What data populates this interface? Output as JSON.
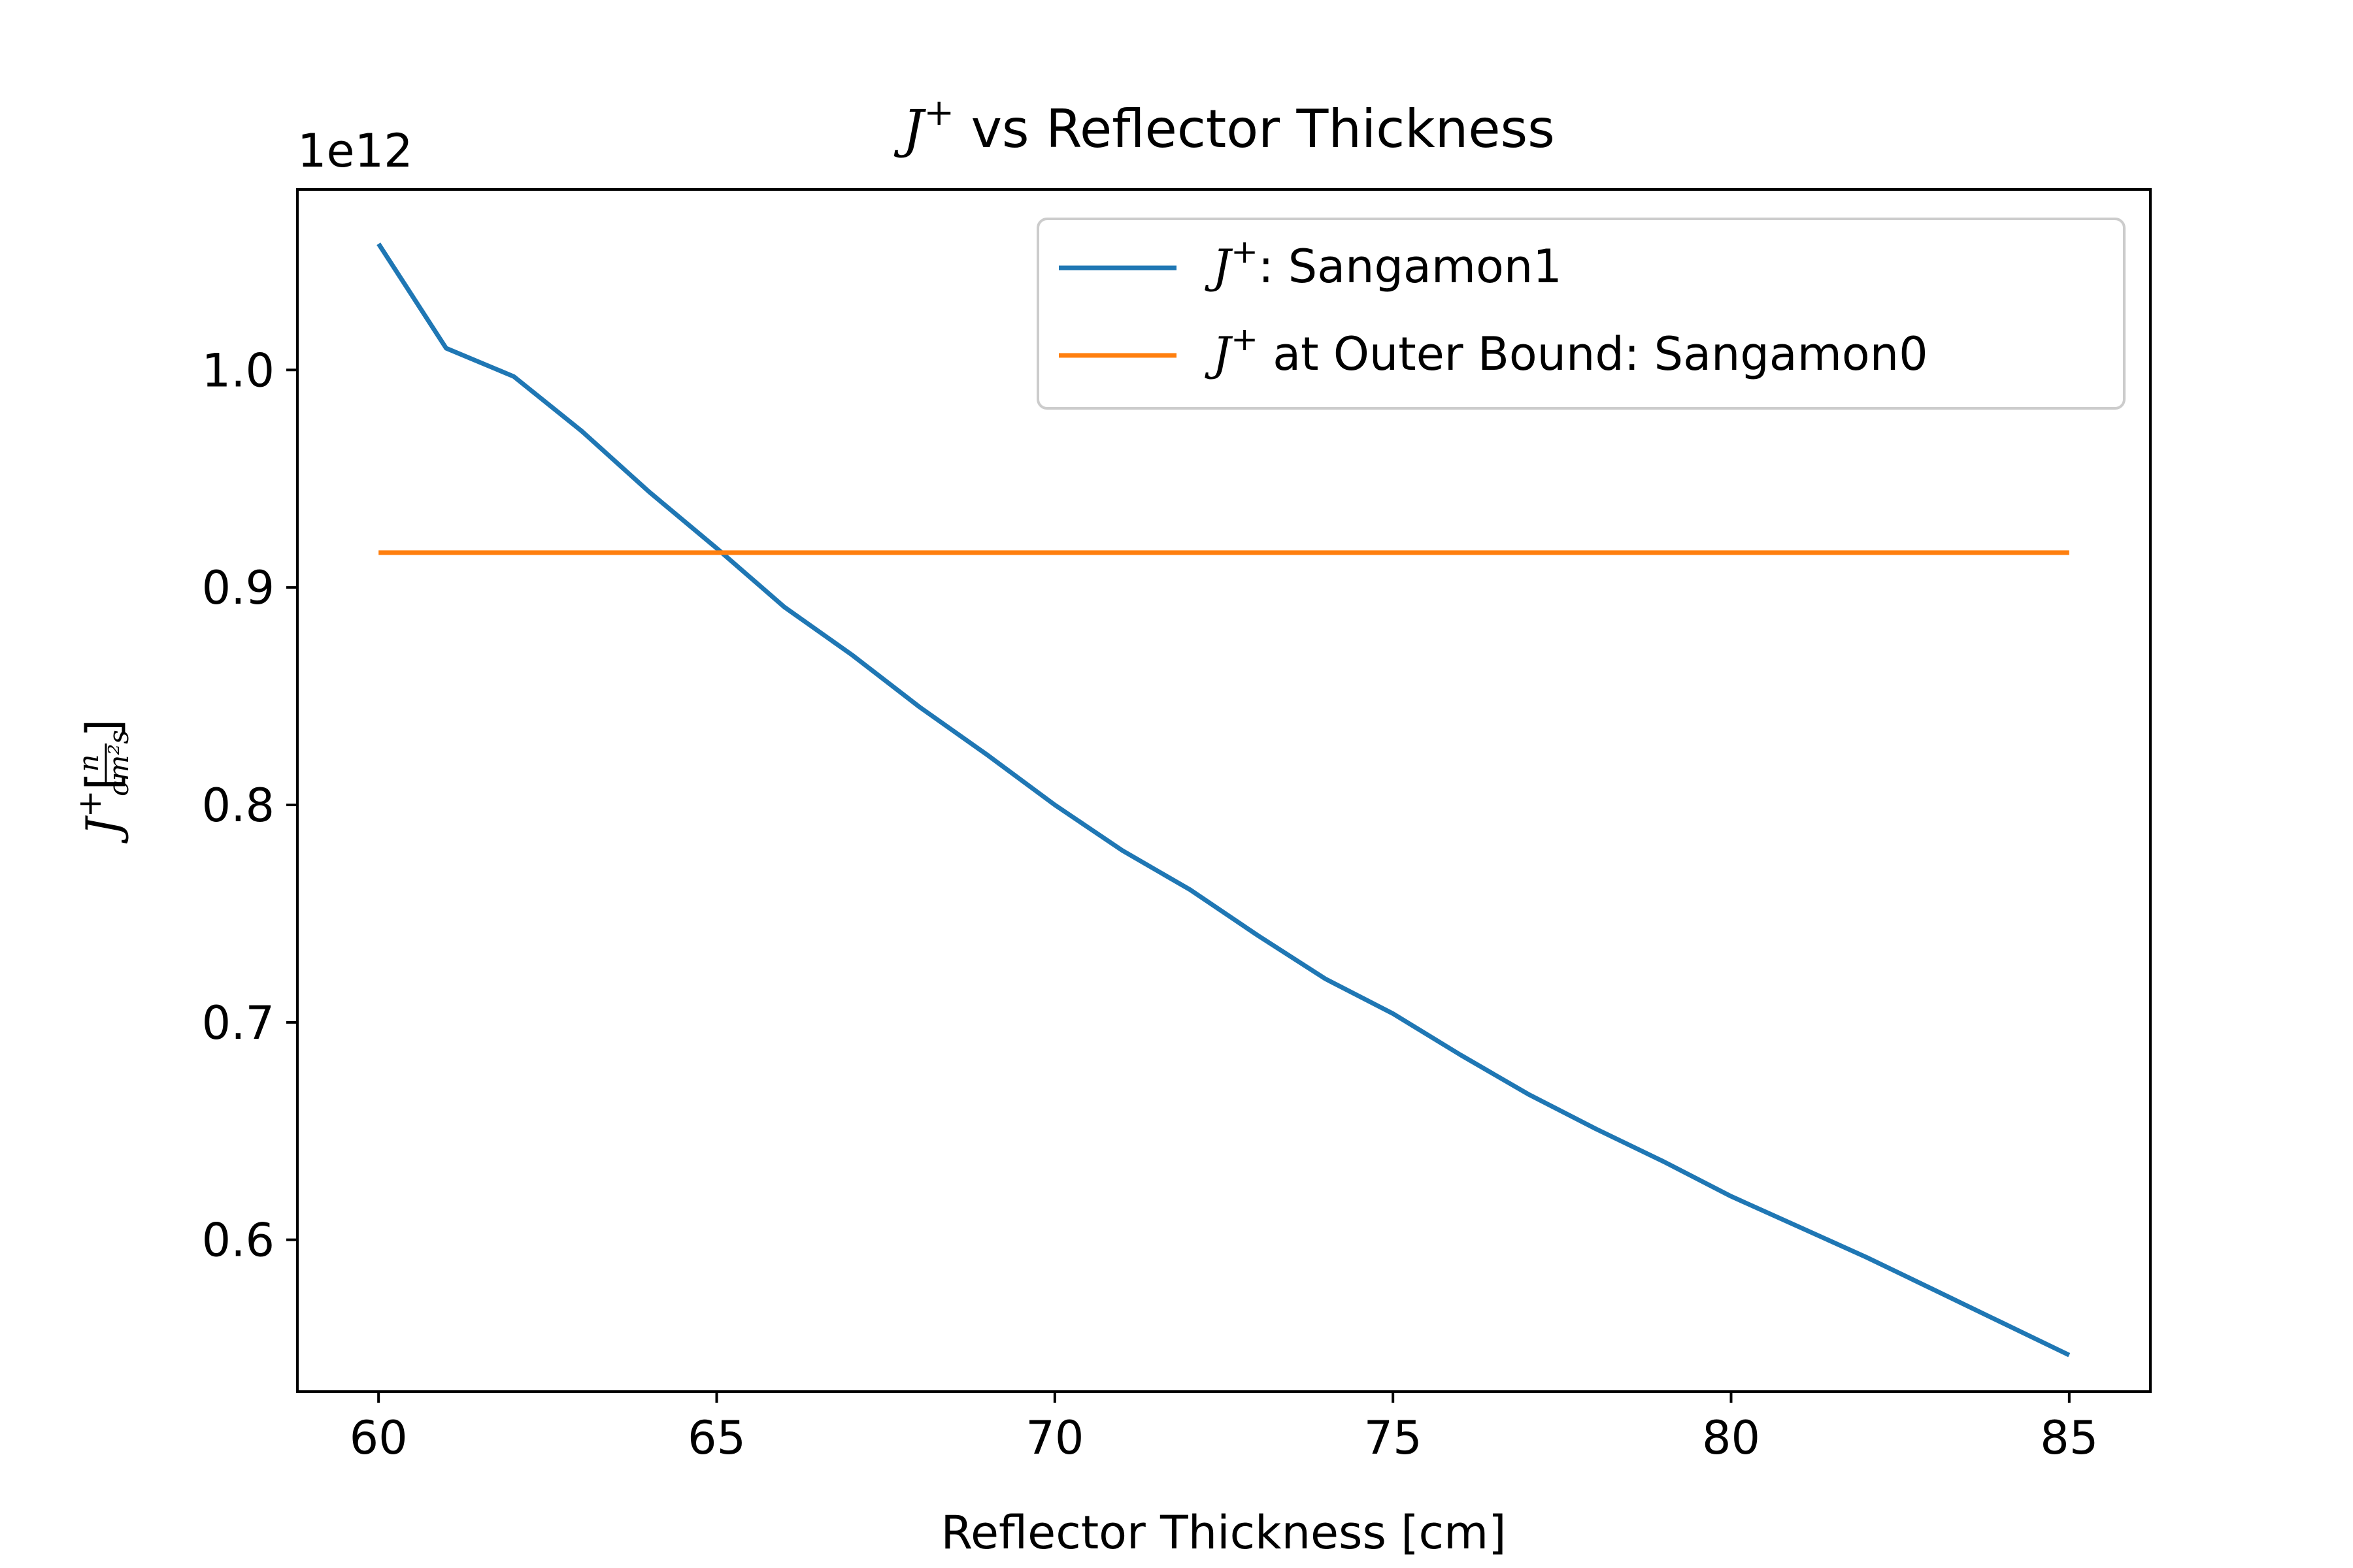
{
  "chart_data": {
    "type": "line",
    "title": {
      "main": "J",
      "sup": "+",
      "rest": " vs Reflector Thickness"
    },
    "xlabel": "Reflector Thickness [cm]",
    "ylabel": {
      "main": "J",
      "sup": "+",
      "frac_num": "n",
      "frac_den": "cm²s"
    },
    "offset_text": "1e12",
    "xlim": [
      58.8,
      86.2
    ],
    "ylim": [
      0.5302,
      1.083
    ],
    "x_ticks": [
      60,
      65,
      70,
      75,
      80,
      85
    ],
    "y_ticks": [
      0.6,
      0.7,
      0.8,
      0.9,
      1.0
    ],
    "y_tick_labels": [
      "0.6",
      "0.7",
      "0.8",
      "0.9",
      "1.0"
    ],
    "grid": false,
    "legend_position": "top-right",
    "series": [
      {
        "name_main": "J",
        "name_sup": "+",
        "name_rest": ": Sangamon1",
        "color": "#1f77b4",
        "x": [
          60,
          61,
          62,
          63,
          64,
          65,
          66,
          67,
          68,
          69,
          70,
          71,
          72,
          73,
          74,
          75,
          76,
          77,
          78,
          79,
          80,
          81,
          82,
          83,
          84,
          85
        ],
        "y": [
          1.058,
          1.01,
          0.997,
          0.972,
          0.944,
          0.918,
          0.891,
          0.869,
          0.845,
          0.823,
          0.8,
          0.779,
          0.761,
          0.74,
          0.72,
          0.704,
          0.685,
          0.667,
          0.651,
          0.636,
          0.62,
          0.606,
          0.592,
          0.577,
          0.562,
          0.547
        ]
      },
      {
        "name_main": "J",
        "name_sup": "+",
        "name_rest": " at Outer Bound: Sangamon0",
        "color": "#ff7f0e",
        "x": [
          60,
          85
        ],
        "y": [
          0.916,
          0.916
        ]
      }
    ]
  }
}
